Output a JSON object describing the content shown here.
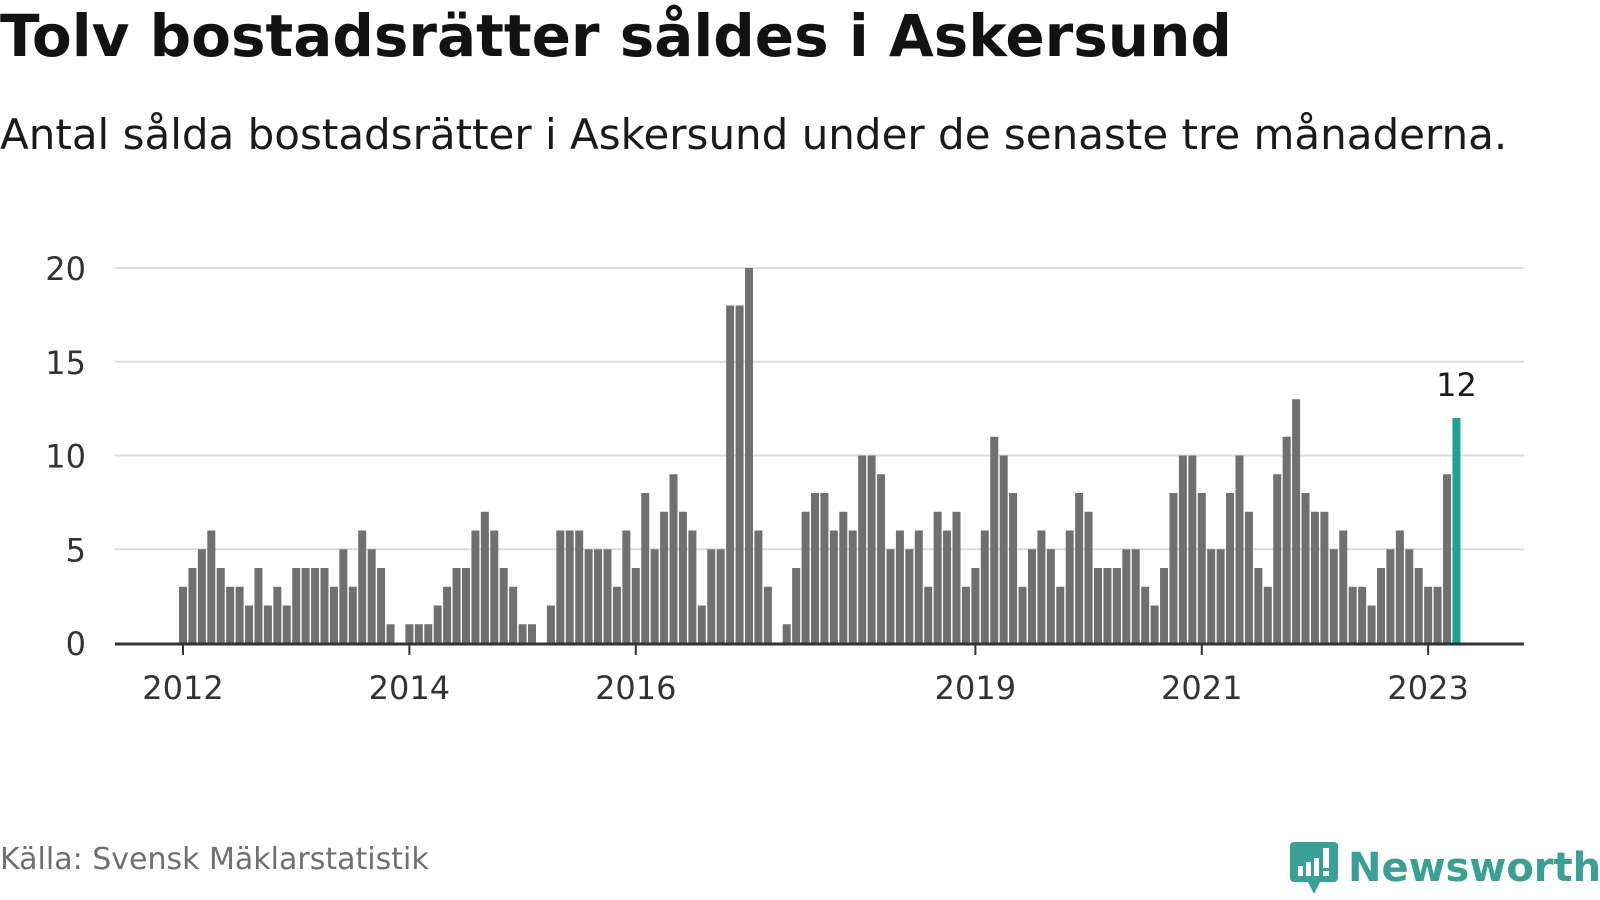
{
  "header": {
    "title": "Tolv bostadsrätter såldes i Askersund",
    "subtitle": "Antal sålda bostadsrätter i Askersund under de senaste tre månaderna."
  },
  "footer": {
    "source": "Källa: Svensk Mäklarstatistik",
    "brand": "Newsworthy"
  },
  "colors": {
    "bar": "#707070",
    "highlight": "#1aa396",
    "grid": "#dcdcdc",
    "axis": "#333333",
    "brand": "#3a9f94"
  },
  "chart_data": {
    "type": "bar",
    "title": "Tolv bostadsrätter såldes i Askersund",
    "subtitle": "Antal sålda bostadsrätter i Askersund under de senaste tre månaderna.",
    "xlabel": "",
    "ylabel": "",
    "ylim": [
      0,
      20
    ],
    "yticks": [
      0,
      5,
      10,
      15,
      20
    ],
    "xticks": [
      {
        "label": "2012",
        "index": 0
      },
      {
        "label": "2014",
        "index": 24
      },
      {
        "label": "2016",
        "index": 48
      },
      {
        "label": "2019",
        "index": 84
      },
      {
        "label": "2021",
        "index": 108
      },
      {
        "label": "2023",
        "index": 132
      }
    ],
    "grid": true,
    "legend": "none",
    "highlight_index": 135,
    "highlight_label": "12",
    "values": [
      3,
      4,
      5,
      6,
      4,
      3,
      3,
      2,
      4,
      2,
      3,
      2,
      4,
      4,
      4,
      4,
      3,
      5,
      3,
      6,
      5,
      4,
      1,
      0,
      1,
      1,
      1,
      2,
      3,
      4,
      4,
      6,
      7,
      6,
      4,
      3,
      1,
      1,
      0,
      2,
      6,
      6,
      6,
      5,
      5,
      5,
      3,
      6,
      4,
      8,
      5,
      7,
      9,
      7,
      6,
      2,
      5,
      5,
      18,
      18,
      20,
      6,
      3,
      0,
      1,
      4,
      7,
      8,
      8,
      6,
      7,
      6,
      10,
      10,
      9,
      5,
      6,
      5,
      6,
      3,
      7,
      6,
      7,
      3,
      4,
      6,
      11,
      10,
      8,
      3,
      5,
      6,
      5,
      3,
      6,
      8,
      7,
      4,
      4,
      4,
      5,
      5,
      3,
      2,
      4,
      8,
      10,
      10,
      8,
      5,
      5,
      8,
      10,
      7,
      4,
      3,
      9,
      11,
      13,
      8,
      7,
      7,
      5,
      6,
      3,
      3,
      2,
      4,
      5,
      6,
      5,
      4,
      3,
      3,
      9,
      12
    ]
  }
}
